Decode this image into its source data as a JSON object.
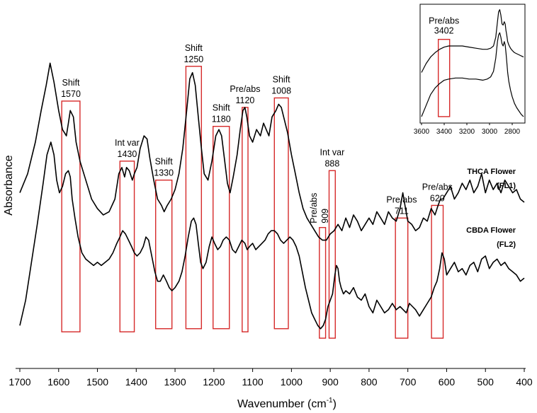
{
  "chart_data": {
    "type": "line",
    "xlabel": "Wavenumber (cm",
    "xlabel_sup": "-1",
    "xlabel_close": ")",
    "ylabel": "Absorbance",
    "xlim": [
      1700,
      400
    ],
    "x_reversed": true,
    "ylim": [
      0,
      1
    ],
    "y_ticks_shown": false,
    "x_ticks": [
      1700,
      1600,
      1500,
      1400,
      1300,
      1200,
      1100,
      1000,
      900,
      800,
      700,
      600,
      500,
      400
    ],
    "series": [
      {
        "name": "THCA Flower (FL1)",
        "label_line1": "THCA Flower",
        "label_line2": "(FL1)",
        "x": [
          1700,
          1680,
          1660,
          1645,
          1632,
          1622,
          1612,
          1600,
          1590,
          1580,
          1575,
          1570,
          1562,
          1555,
          1545,
          1530,
          1515,
          1500,
          1485,
          1470,
          1455,
          1445,
          1437,
          1430,
          1425,
          1418,
          1410,
          1405,
          1398,
          1390,
          1380,
          1372,
          1365,
          1355,
          1345,
          1335,
          1328,
          1320,
          1310,
          1300,
          1290,
          1280,
          1270,
          1262,
          1255,
          1248,
          1240,
          1232,
          1225,
          1215,
          1205,
          1195,
          1187,
          1180,
          1172,
          1165,
          1158,
          1150,
          1140,
          1132,
          1125,
          1120,
          1115,
          1108,
          1100,
          1090,
          1080,
          1072,
          1065,
          1058,
          1050,
          1040,
          1033,
          1026,
          1020,
          1010,
          1000,
          990,
          980,
          970,
          960,
          950,
          940,
          930,
          920,
          910,
          900,
          890,
          880,
          870,
          860,
          850,
          840,
          830,
          820,
          810,
          800,
          790,
          780,
          770,
          760,
          750,
          740,
          730,
          720,
          713,
          706,
          700,
          690,
          680,
          670,
          660,
          650,
          640,
          630,
          622,
          616,
          610,
          600,
          590,
          580,
          570,
          560,
          550,
          540,
          530,
          520,
          510,
          500,
          490,
          480,
          470,
          460,
          450,
          440,
          430,
          420,
          410,
          400
        ],
        "y": [
          0.52,
          0.58,
          0.68,
          0.78,
          0.86,
          0.93,
          0.87,
          0.78,
          0.72,
          0.7,
          0.74,
          0.78,
          0.76,
          0.68,
          0.62,
          0.56,
          0.5,
          0.47,
          0.45,
          0.46,
          0.5,
          0.58,
          0.6,
          0.57,
          0.6,
          0.59,
          0.56,
          0.58,
          0.6,
          0.66,
          0.7,
          0.69,
          0.63,
          0.56,
          0.5,
          0.48,
          0.46,
          0.48,
          0.5,
          0.53,
          0.58,
          0.66,
          0.78,
          0.88,
          0.9,
          0.86,
          0.76,
          0.66,
          0.58,
          0.56,
          0.62,
          0.7,
          0.72,
          0.7,
          0.62,
          0.55,
          0.52,
          0.57,
          0.64,
          0.72,
          0.78,
          0.79,
          0.76,
          0.7,
          0.68,
          0.72,
          0.7,
          0.74,
          0.72,
          0.7,
          0.76,
          0.78,
          0.8,
          0.79,
          0.76,
          0.71,
          0.64,
          0.58,
          0.52,
          0.47,
          0.44,
          0.42,
          0.4,
          0.38,
          0.37,
          0.37,
          0.39,
          0.4,
          0.42,
          0.4,
          0.44,
          0.41,
          0.45,
          0.43,
          0.4,
          0.42,
          0.44,
          0.42,
          0.46,
          0.44,
          0.42,
          0.46,
          0.44,
          0.43,
          0.47,
          0.52,
          0.47,
          0.43,
          0.42,
          0.4,
          0.41,
          0.44,
          0.43,
          0.47,
          0.45,
          0.48,
          0.5,
          0.5,
          0.52,
          0.54,
          0.5,
          0.52,
          0.55,
          0.53,
          0.56,
          0.52,
          0.54,
          0.58,
          0.52,
          0.56,
          0.53,
          0.55,
          0.52,
          0.56,
          0.54,
          0.52,
          0.53,
          0.5,
          0.49
        ]
      },
      {
        "name": "CBDA Flower (FL2)",
        "label_line1": "CBDA Flower",
        "label_line2": "(FL2)",
        "x": [
          1700,
          1685,
          1670,
          1655,
          1640,
          1630,
          1620,
          1612,
          1605,
          1598,
          1590,
          1582,
          1575,
          1570,
          1565,
          1558,
          1550,
          1540,
          1530,
          1520,
          1510,
          1500,
          1490,
          1480,
          1470,
          1460,
          1450,
          1442,
          1435,
          1428,
          1420,
          1412,
          1405,
          1398,
          1390,
          1382,
          1375,
          1368,
          1360,
          1352,
          1345,
          1338,
          1330,
          1322,
          1315,
          1308,
          1300,
          1290,
          1282,
          1274,
          1266,
          1258,
          1252,
          1246,
          1240,
          1234,
          1228,
          1220,
          1212,
          1205,
          1198,
          1190,
          1183,
          1176,
          1168,
          1160,
          1152,
          1144,
          1136,
          1128,
          1120,
          1114,
          1108,
          1100,
          1092,
          1084,
          1076,
          1068,
          1060,
          1052,
          1044,
          1036,
          1028,
          1020,
          1012,
          1004,
          996,
          988,
          980,
          972,
          964,
          956,
          948,
          940,
          932,
          925,
          918,
          912,
          906,
          900,
          894,
          888,
          884,
          880,
          876,
          872,
          866,
          860,
          850,
          840,
          830,
          820,
          810,
          800,
          790,
          780,
          770,
          760,
          750,
          740,
          730,
          720,
          712,
          704,
          696,
          688,
          680,
          670,
          660,
          650,
          640,
          632,
          625,
          618,
          612,
          606,
          600,
          590,
          580,
          570,
          560,
          550,
          540,
          530,
          520,
          510,
          500,
          490,
          480,
          470,
          460,
          450,
          440,
          430,
          420,
          410,
          400
        ],
        "y": [
          0.1,
          0.18,
          0.3,
          0.42,
          0.55,
          0.64,
          0.68,
          0.64,
          0.56,
          0.52,
          0.54,
          0.58,
          0.59,
          0.57,
          0.5,
          0.44,
          0.38,
          0.33,
          0.31,
          0.3,
          0.29,
          0.3,
          0.29,
          0.3,
          0.31,
          0.33,
          0.36,
          0.38,
          0.4,
          0.39,
          0.37,
          0.35,
          0.33,
          0.32,
          0.33,
          0.35,
          0.38,
          0.37,
          0.32,
          0.27,
          0.24,
          0.24,
          0.26,
          0.24,
          0.22,
          0.21,
          0.22,
          0.24,
          0.27,
          0.32,
          0.38,
          0.43,
          0.44,
          0.42,
          0.36,
          0.3,
          0.28,
          0.3,
          0.35,
          0.38,
          0.36,
          0.34,
          0.35,
          0.37,
          0.38,
          0.37,
          0.34,
          0.33,
          0.35,
          0.37,
          0.36,
          0.34,
          0.35,
          0.36,
          0.34,
          0.35,
          0.36,
          0.37,
          0.39,
          0.4,
          0.4,
          0.39,
          0.37,
          0.36,
          0.37,
          0.38,
          0.37,
          0.35,
          0.32,
          0.27,
          0.22,
          0.18,
          0.14,
          0.12,
          0.1,
          0.09,
          0.1,
          0.12,
          0.16,
          0.18,
          0.2,
          0.26,
          0.29,
          0.28,
          0.24,
          0.22,
          0.2,
          0.21,
          0.2,
          0.22,
          0.19,
          0.18,
          0.2,
          0.16,
          0.14,
          0.18,
          0.16,
          0.14,
          0.15,
          0.17,
          0.15,
          0.16,
          0.15,
          0.14,
          0.17,
          0.16,
          0.15,
          0.13,
          0.15,
          0.17,
          0.19,
          0.22,
          0.24,
          0.28,
          0.33,
          0.31,
          0.26,
          0.28,
          0.3,
          0.27,
          0.28,
          0.26,
          0.29,
          0.3,
          0.27,
          0.31,
          0.32,
          0.28,
          0.3,
          0.31,
          0.29,
          0.3,
          0.28,
          0.27,
          0.26,
          0.24,
          0.25
        ]
      }
    ],
    "annotations": [
      {
        "kind": "Shift",
        "wavenumber": "1570",
        "x_from": 1592,
        "x_to": 1545,
        "y_from": 0.08,
        "y_to": 0.81
      },
      {
        "kind": "Int var",
        "wavenumber": "1430",
        "x_from": 1442,
        "x_to": 1405,
        "y_from": 0.08,
        "y_to": 0.62
      },
      {
        "kind": "Shift",
        "wavenumber": "1330",
        "x_from": 1350,
        "x_to": 1308,
        "y_from": 0.09,
        "y_to": 0.56
      },
      {
        "kind": "Shift",
        "wavenumber": "1250",
        "x_from": 1272,
        "x_to": 1232,
        "y_from": 0.09,
        "y_to": 0.92
      },
      {
        "kind": "Shift",
        "wavenumber": "1180",
        "x_from": 1202,
        "x_to": 1160,
        "y_from": 0.09,
        "y_to": 0.73
      },
      {
        "kind": "Pre/abs",
        "wavenumber": "1120",
        "x_from": 1127,
        "x_to": 1112,
        "y_from": 0.08,
        "y_to": 0.79
      },
      {
        "kind": "Shift",
        "wavenumber": "1008",
        "x_from": 1044,
        "x_to": 1008,
        "y_from": 0.09,
        "y_to": 0.82
      },
      {
        "kind": "Pre/abs",
        "wavenumber": "909",
        "x_from": 928,
        "x_to": 912,
        "y_from": 0.06,
        "y_to": 0.41,
        "vertical_label": true
      },
      {
        "kind": "Int var",
        "wavenumber": "888",
        "x_from": 903,
        "x_to": 887,
        "y_from": 0.06,
        "y_to": 0.59
      },
      {
        "kind": "Pre/abs",
        "wavenumber": "711",
        "x_from": 732,
        "x_to": 700,
        "y_from": 0.06,
        "y_to": 0.44
      },
      {
        "kind": "Pre/abs",
        "wavenumber": "620",
        "x_from": 639,
        "x_to": 609,
        "y_from": 0.06,
        "y_to": 0.48
      }
    ],
    "inset": {
      "xlim": [
        3600,
        2700
      ],
      "x_ticks": [
        3600,
        3400,
        3200,
        3000,
        2800
      ],
      "series": [
        {
          "name": "THCA Flower (FL1)",
          "x": [
            3600,
            3560,
            3520,
            3480,
            3440,
            3400,
            3360,
            3300,
            3240,
            3180,
            3120,
            3060,
            3020,
            2990,
            2965,
            2945,
            2930,
            2920,
            2910,
            2900,
            2890,
            2880,
            2870,
            2862,
            2855,
            2848,
            2840,
            2830,
            2815,
            2800,
            2780,
            2760,
            2740,
            2720,
            2700
          ],
          "y": [
            0.42,
            0.5,
            0.56,
            0.6,
            0.63,
            0.65,
            0.66,
            0.66,
            0.66,
            0.65,
            0.64,
            0.63,
            0.63,
            0.64,
            0.66,
            0.74,
            0.88,
            0.97,
            0.99,
            0.94,
            0.86,
            0.85,
            0.88,
            0.86,
            0.8,
            0.76,
            0.7,
            0.67,
            0.64,
            0.62,
            0.6,
            0.59,
            0.58,
            0.57,
            0.56
          ]
        },
        {
          "name": "CBDA Flower (FL2)",
          "x": [
            3600,
            3560,
            3520,
            3480,
            3440,
            3400,
            3360,
            3300,
            3240,
            3180,
            3120,
            3060,
            3020,
            2990,
            2965,
            2945,
            2930,
            2920,
            2910,
            2900,
            2890,
            2880,
            2870,
            2862,
            2855,
            2848,
            2840,
            2830,
            2815,
            2800,
            2780,
            2760,
            2740,
            2720,
            2700
          ],
          "y": [
            0.02,
            0.12,
            0.22,
            0.28,
            0.32,
            0.35,
            0.36,
            0.37,
            0.37,
            0.36,
            0.36,
            0.35,
            0.36,
            0.38,
            0.43,
            0.55,
            0.7,
            0.76,
            0.78,
            0.74,
            0.68,
            0.66,
            0.7,
            0.67,
            0.6,
            0.52,
            0.42,
            0.34,
            0.26,
            0.2,
            0.14,
            0.1,
            0.07,
            0.04,
            0.02
          ]
        }
      ],
      "annotation": {
        "kind": "Pre/abs",
        "wavenumber": "3402",
        "x_from": 3452,
        "x_to": 3352,
        "y_from": 0.02,
        "y_to": 0.72
      }
    }
  }
}
